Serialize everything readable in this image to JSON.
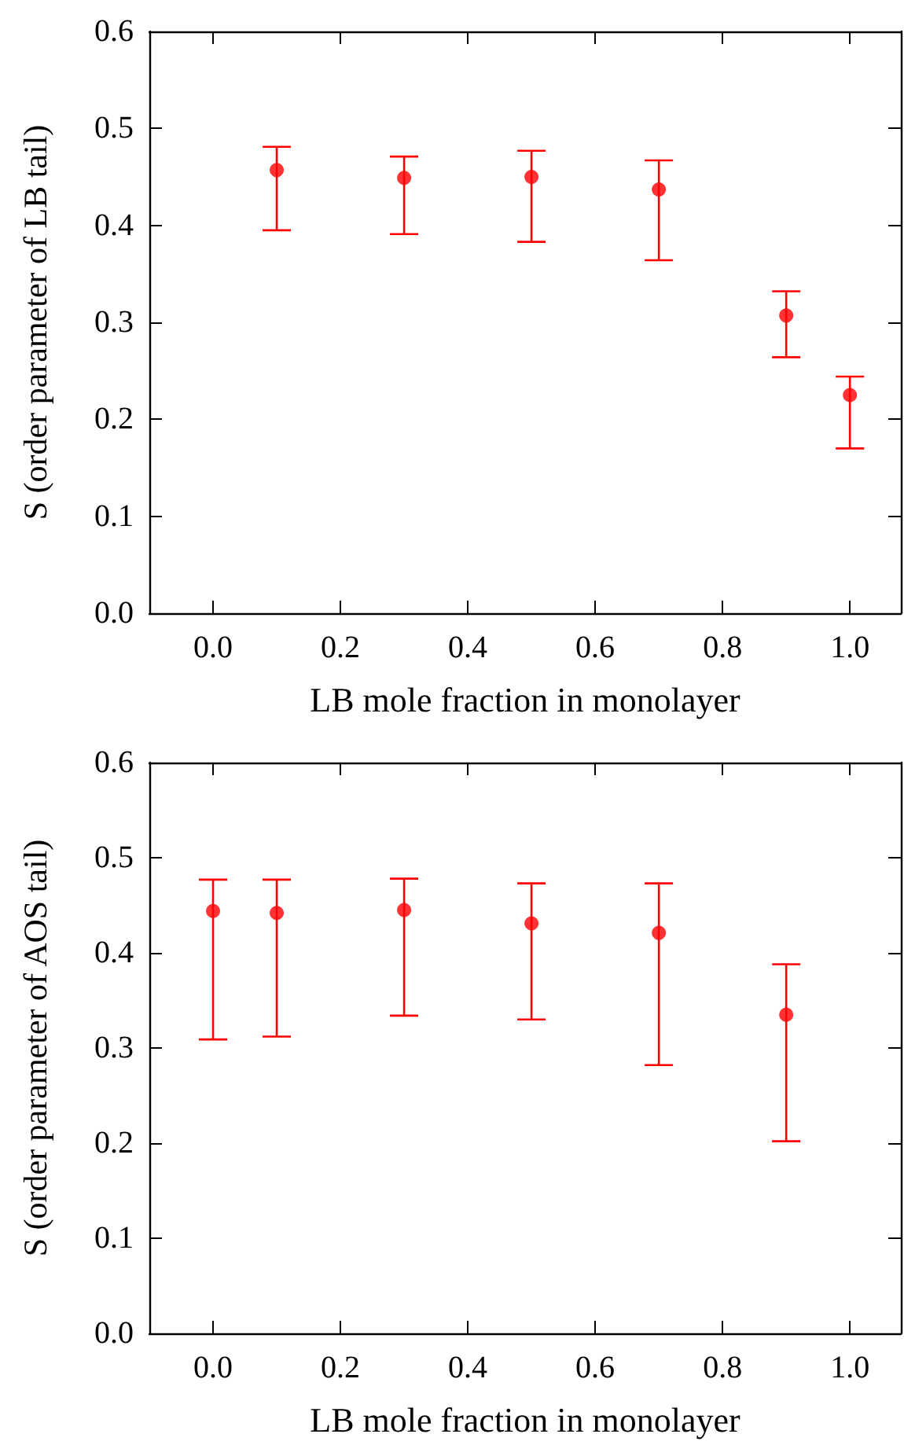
{
  "chart_data": [
    {
      "type": "scatter",
      "xlabel": "LB mole fraction in monolayer",
      "ylabel": "S (order parameter of LB tail)",
      "x": [
        0.1,
        0.3,
        0.5,
        0.7,
        0.9,
        1.0
      ],
      "series": [
        {
          "color": "#ff0000",
          "values": [
            0.457,
            0.449,
            0.45,
            0.437,
            0.307,
            0.225
          ],
          "errors": [
            [
              0.395,
              0.481
            ],
            [
              0.391,
              0.471
            ],
            [
              0.383,
              0.477
            ],
            [
              0.364,
              0.467
            ],
            [
              0.264,
              0.332
            ],
            [
              0.17,
              0.244
            ]
          ]
        }
      ],
      "xlim": [
        -0.1,
        1.08
      ],
      "xticks": [
        {
          "value": 0,
          "label": "0.0"
        },
        {
          "value": 0.2,
          "label": "0.2"
        },
        {
          "value": 0.4,
          "label": "0.4"
        },
        {
          "value": 0.6,
          "label": "0.6"
        },
        {
          "value": 0.8,
          "label": "0.8"
        },
        {
          "value": 1,
          "label": "1.0"
        }
      ],
      "ylim": [
        0,
        0.6
      ],
      "yticks": [
        {
          "value": 0,
          "label": "0.0"
        },
        {
          "value": 0.1,
          "label": "0.1"
        },
        {
          "value": 0.2,
          "label": "0.2"
        },
        {
          "value": 0.3,
          "label": "0.3"
        },
        {
          "value": 0.4,
          "label": "0.4"
        },
        {
          "value": 0.5,
          "label": "0.5"
        },
        {
          "value": 0.6,
          "label": "0.6"
        }
      ],
      "marker": "circle",
      "grid": false
    },
    {
      "type": "scatter",
      "xlabel": "LB mole fraction in monolayer",
      "ylabel": "S (order parameter of AOS tail)",
      "x": [
        0.0,
        0.1,
        0.3,
        0.5,
        0.7,
        0.9
      ],
      "series": [
        {
          "color": "#ff0000",
          "values": [
            0.444,
            0.442,
            0.445,
            0.431,
            0.421,
            0.335
          ],
          "errors": [
            [
              0.309,
              0.477
            ],
            [
              0.312,
              0.477
            ],
            [
              0.334,
              0.478
            ],
            [
              0.33,
              0.473
            ],
            [
              0.282,
              0.473
            ],
            [
              0.202,
              0.388
            ]
          ]
        }
      ],
      "xlim": [
        -0.1,
        1.08
      ],
      "xticks": [
        {
          "value": 0,
          "label": "0.0"
        },
        {
          "value": 0.2,
          "label": "0.2"
        },
        {
          "value": 0.4,
          "label": "0.4"
        },
        {
          "value": 0.6,
          "label": "0.6"
        },
        {
          "value": 0.8,
          "label": "0.8"
        },
        {
          "value": 1,
          "label": "1.0"
        }
      ],
      "ylim": [
        0,
        0.6
      ],
      "yticks": [
        {
          "value": 0,
          "label": "0.0"
        },
        {
          "value": 0.1,
          "label": "0.1"
        },
        {
          "value": 0.2,
          "label": "0.2"
        },
        {
          "value": 0.3,
          "label": "0.3"
        },
        {
          "value": 0.4,
          "label": "0.4"
        },
        {
          "value": 0.5,
          "label": "0.5"
        },
        {
          "value": 0.6,
          "label": "0.6"
        }
      ],
      "marker": "circle",
      "grid": false
    }
  ]
}
